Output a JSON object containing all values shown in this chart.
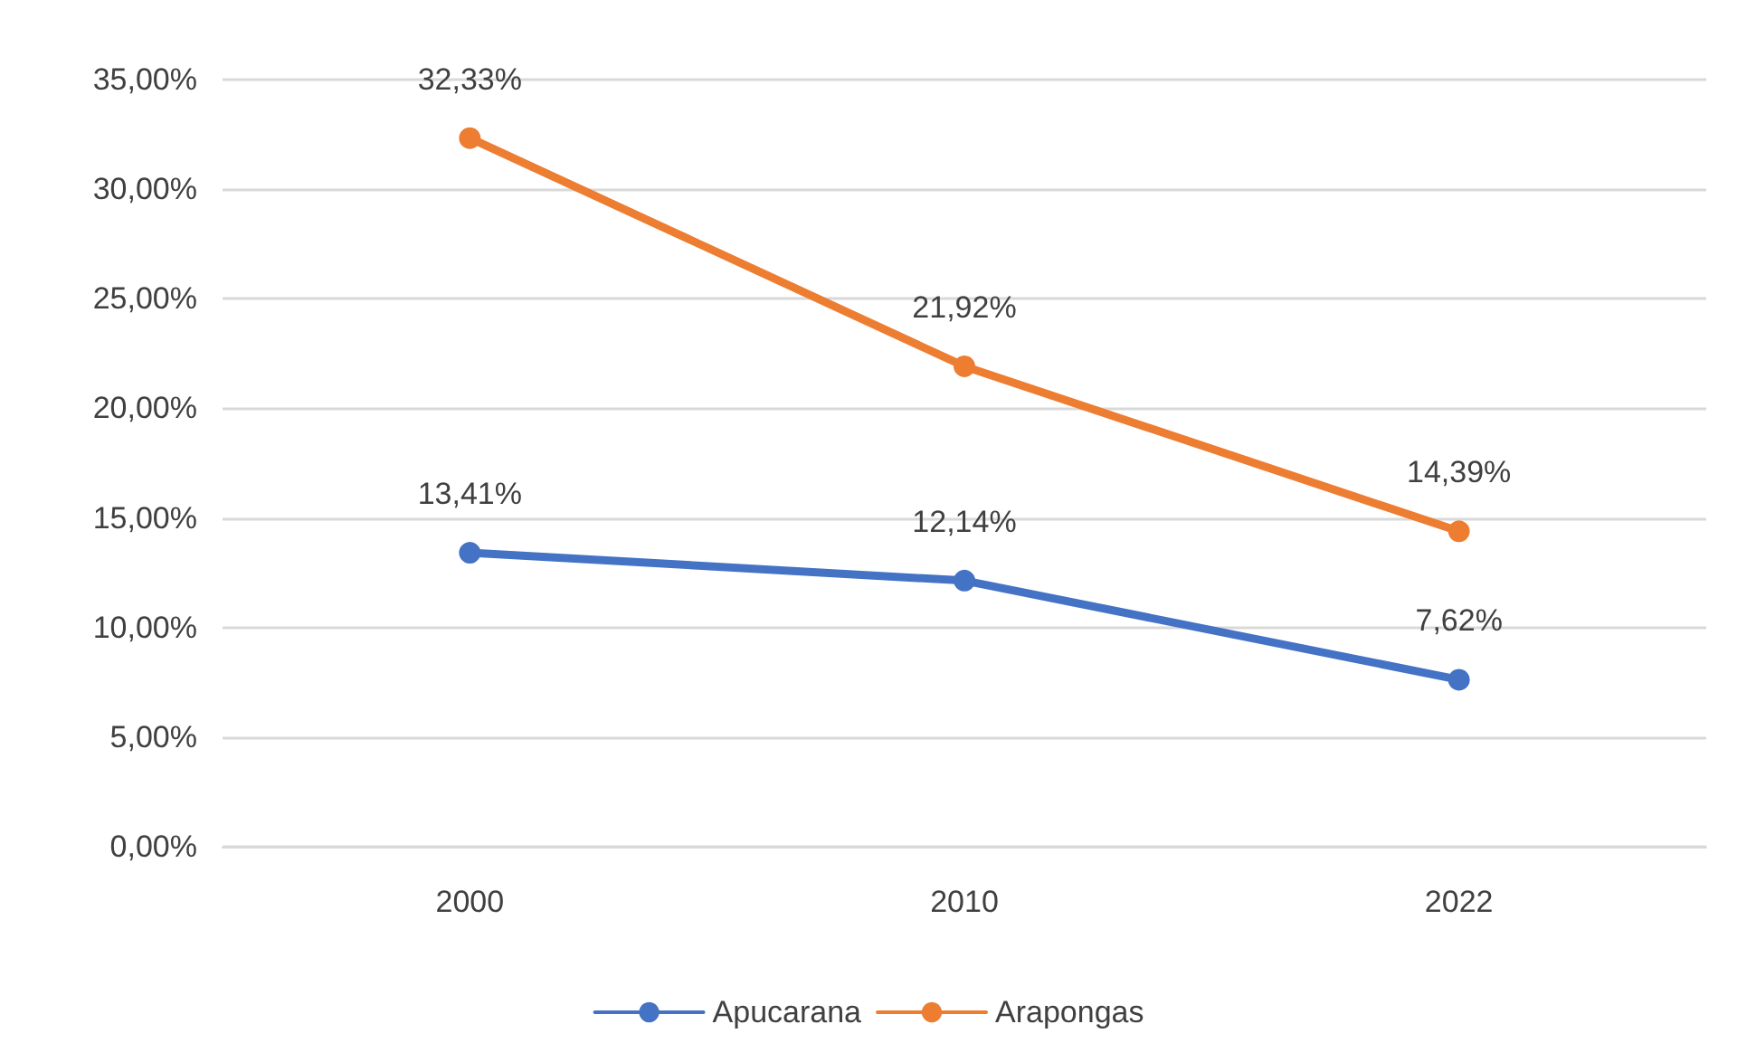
{
  "chart_data": {
    "type": "line",
    "categories": [
      "2000",
      "2010",
      "2022"
    ],
    "series": [
      {
        "name": "Apucarana",
        "color": "#4472c4",
        "values": [
          13.41,
          12.14,
          7.62
        ],
        "value_labels": [
          "13,41%",
          "12,14%",
          "7,62%"
        ]
      },
      {
        "name": "Arapongas",
        "color": "#ed7d31",
        "values": [
          32.33,
          21.92,
          14.39
        ],
        "value_labels": [
          "32,33%",
          "21,92%",
          "14,39%"
        ]
      }
    ],
    "ylim": [
      0,
      35
    ],
    "yticks": [
      {
        "value": 0,
        "label": "0,00%"
      },
      {
        "value": 5,
        "label": "5,00%"
      },
      {
        "value": 10,
        "label": "10,00%"
      },
      {
        "value": 15,
        "label": "15,00%"
      },
      {
        "value": 20,
        "label": "20,00%"
      },
      {
        "value": 25,
        "label": "25,00%"
      },
      {
        "value": 30,
        "label": "30,00%"
      },
      {
        "value": 35,
        "label": "35,00%"
      }
    ],
    "grid": "y",
    "legend": "bottom",
    "marker": "circle",
    "line_style": "solid"
  }
}
